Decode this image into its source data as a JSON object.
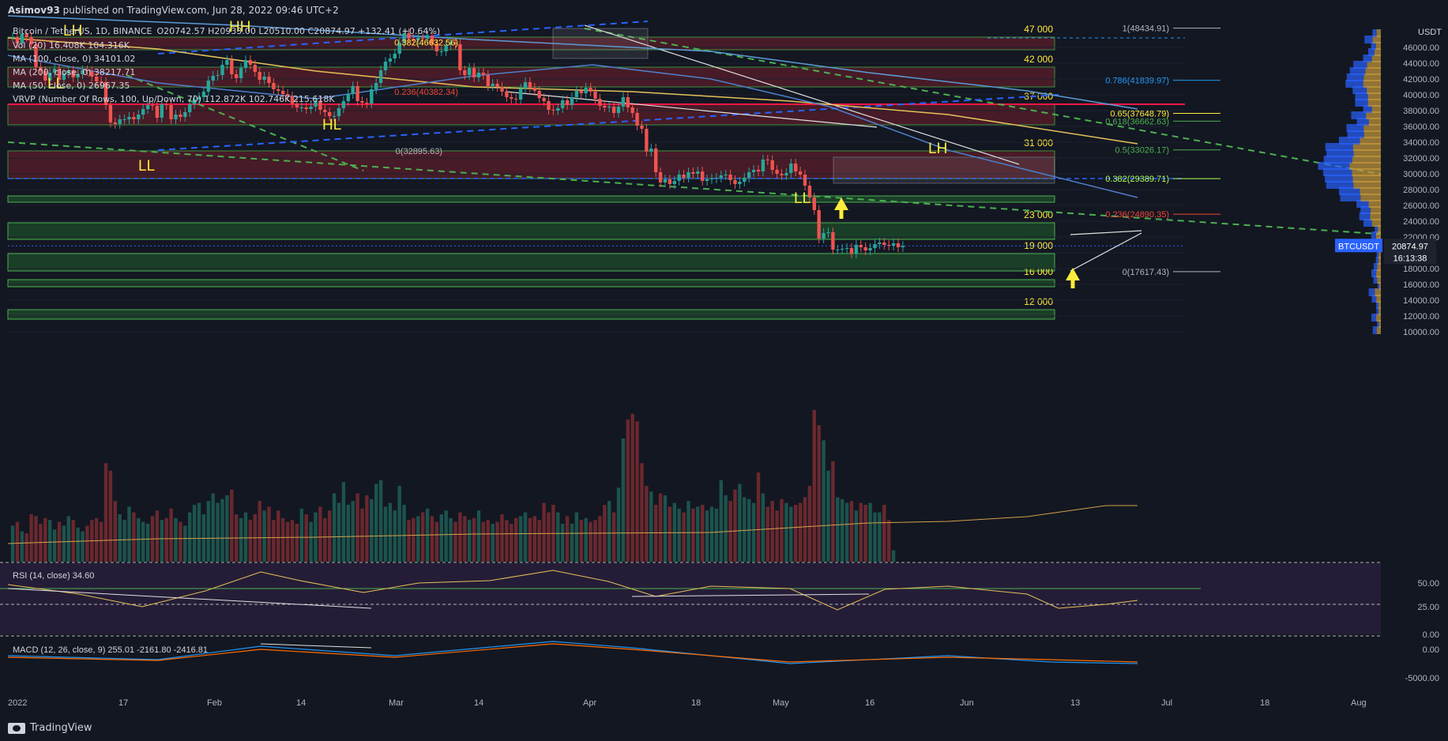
{
  "header": {
    "author": "Asimov93",
    "published": "published on TradingView.com, Jun 28, 2022 09:46 UTC+2"
  },
  "legend": {
    "symbol": "Bitcoin / TetherUS, 1D, BINANCE",
    "ohlc": "O20742.57 H20933.00 L20510.00 C20874.97 +132.41 (+0.64%)",
    "vol": "Vol (20) 16.408K 104.316K",
    "ma100": "MA (100, close, 0) 34101.02",
    "ma200": "MA (200, close, 0) 38217.71",
    "ma50": "MA (50, close, 0) 26967.35",
    "vrvp": "VRVP (Number Of Rows, 100, Up/Down, 70) 112.872K 102.746K 215.618K"
  },
  "price_axis": {
    "unit": "USDT",
    "ticks": [
      "46000.00",
      "44000.00",
      "42000.00",
      "40000.00",
      "38000.00",
      "36000.00",
      "34000.00",
      "32000.00",
      "30000.00",
      "28000.00",
      "26000.00",
      "24000.00",
      "22000.00",
      "18000.00",
      "16000.00",
      "14000.00",
      "12000.00",
      "10000.00"
    ],
    "last_label": "BTCUSDT",
    "last_price": "20874.97",
    "countdown": "16:13:38",
    "rsi_ticks": [
      "50.00",
      "25.00",
      "0.00"
    ],
    "macd_ticks": [
      "0.00",
      "-5000.00"
    ]
  },
  "time_axis": [
    "2022",
    "17",
    "Feb",
    "14",
    "Mar",
    "14",
    "Apr",
    "18",
    "May",
    "16",
    "Jun",
    "13",
    "Jul",
    "18",
    "Aug"
  ],
  "chart_data": {
    "type": "candlestick",
    "title": "Bitcoin / TetherUS, 1D, BINANCE",
    "ylim": [
      8000,
      50000
    ],
    "zones": [
      {
        "label": "47 000",
        "low": 45700,
        "high": 47300,
        "color": "#5a1e2a"
      },
      {
        "label": "42 000",
        "low": 41000,
        "high": 43500,
        "color": "#5a1e2a"
      },
      {
        "label": "37 000",
        "low": 36200,
        "high": 38800,
        "color": "#5a1e2a"
      },
      {
        "label": "31 000",
        "low": 29400,
        "high": 32900,
        "color": "#5a1e2a"
      },
      {
        "label": "",
        "low": 26400,
        "high": 27200,
        "color": "#1e4d2b"
      },
      {
        "label": "23 000",
        "low": 21700,
        "high": 23800,
        "color": "#1e4d2b"
      },
      {
        "label": "19 000",
        "low": 17700,
        "high": 19900,
        "color": "#1e4d2b"
      },
      {
        "label": "16 000",
        "low": 15700,
        "high": 16600,
        "color": "#1e4d2b"
      },
      {
        "label": "12 000",
        "low": 11600,
        "high": 12800,
        "color": "#1e4d2b"
      }
    ],
    "fib_labels": [
      {
        "text": "1(48434.91)",
        "price": 48434.91,
        "color": "#b2b5be"
      },
      {
        "text": "0.786(41839.97)",
        "price": 41839.97,
        "color": "#2196f3"
      },
      {
        "text": "0.65(37648.79)",
        "price": 37648.79,
        "color": "#ffeb3b"
      },
      {
        "text": "0.618(36662.63)",
        "price": 36662.63,
        "color": "#4caf50"
      },
      {
        "text": "0.5(33026.17)",
        "price": 33026.17,
        "color": "#4caf50"
      },
      {
        "text": "0.382(29389.71)",
        "price": 29389.71,
        "color": "#b2ff59"
      },
      {
        "text": "0.236(24890.35)",
        "price": 24890.35,
        "color": "#f44336"
      },
      {
        "text": "0(17617.43)",
        "price": 17617.43,
        "color": "#b2b5be"
      },
      {
        "text": "0.382(46632.56)",
        "price": 46632.56,
        "color": "#ffeb3b"
      },
      {
        "text": "0.236(40382.34)",
        "price": 40382.34,
        "color": "#f44336"
      },
      {
        "text": "0(32895.63)",
        "price": 32895.63,
        "color": "#b2b5be"
      }
    ],
    "annotations": [
      "HH",
      "LH",
      "LL",
      "LL",
      "HL",
      "LH",
      "LL"
    ],
    "closes": [
      47300,
      46500,
      47700,
      47300,
      46400,
      43500,
      43000,
      41800,
      42800,
      43300,
      41900,
      42700,
      43100,
      42200,
      42600,
      43100,
      43000,
      42300,
      41700,
      41600,
      38700,
      36500,
      36300,
      36900,
      36900,
      37200,
      36900,
      37500,
      38200,
      38700,
      38600,
      37100,
      38800,
      38700,
      36900,
      37500,
      37200,
      37800,
      38800,
      39400,
      39700,
      40400,
      41800,
      42400,
      42500,
      43800,
      44400,
      42600,
      42100,
      43400,
      44400,
      43800,
      42900,
      41900,
      42300,
      41500,
      40700,
      40500,
      40100,
      39800,
      38900,
      38400,
      38400,
      38200,
      38500,
      39200,
      38100,
      37800,
      37300,
      37300,
      38300,
      39200,
      40100,
      41100,
      39200,
      39000,
      38900,
      40700,
      41500,
      43100,
      44200,
      44600,
      45200,
      46600,
      47800,
      47100,
      46900,
      47200,
      47100,
      47500,
      46400,
      45500,
      45500,
      46300,
      46600,
      46400,
      43100,
      42500,
      43400,
      42200,
      42800,
      42500,
      41100,
      41400,
      41000,
      40400,
      39700,
      39500,
      39400,
      40800,
      41600,
      40900,
      40500,
      39600,
      39200,
      38100,
      38000,
      38300,
      39300,
      38700,
      39700,
      40500,
      40200,
      40900,
      40400,
      39500,
      38600,
      38400,
      38500,
      37700,
      38500,
      39700,
      38400,
      37700,
      36100,
      35700,
      32800,
      33200,
      30200,
      28900,
      29300,
      28700,
      29100,
      29900,
      29500,
      30200,
      30000,
      30300,
      29100,
      29300,
      29400,
      29500,
      29800,
      29900,
      29200,
      28700,
      29000,
      29500,
      30200,
      30500,
      30300,
      31800,
      31700,
      30500,
      30000,
      29800,
      30100,
      31300,
      30300,
      29900,
      28500,
      27000,
      25400,
      21800,
      22500,
      22600,
      20400,
      20400,
      20500,
      20600,
      19900,
      21000,
      20700,
      20300,
      20600,
      21100,
      21300,
      21000,
      20900,
      21200,
      20700,
      20875
    ],
    "volumes": [
      1.9,
      2.1,
      1.6,
      1.5,
      2.5,
      2.4,
      2.0,
      2.3,
      2.2,
      1.7,
      2.1,
      1.9,
      2.4,
      2.2,
      1.8,
      1.6,
      1.9,
      2.2,
      2.3,
      2.1,
      5.2,
      4.8,
      3.2,
      2.5,
      2.2,
      2.9,
      2.6,
      2.3,
      2.1,
      2.0,
      2.4,
      2.7,
      2.2,
      2.3,
      2.8,
      2.3,
      2.1,
      1.9,
      2.6,
      3.0,
      3.1,
      2.5,
      3.2,
      3.6,
      3.1,
      3.3,
      3.5,
      3.8,
      2.5,
      2.3,
      2.6,
      2.2,
      2.5,
      3.2,
      2.7,
      2.9,
      2.2,
      2.7,
      2.3,
      2.1,
      2.2,
      2.0,
      2.8,
      2.5,
      2.1,
      2.6,
      2.9,
      2.3,
      2.7,
      3.6,
      3.1,
      4.2,
      3.0,
      3.2,
      3.6,
      2.8,
      3.5,
      3.3,
      4.1,
      4.3,
      2.9,
      3.1,
      2.7,
      4.0,
      3.0,
      2.2,
      2.3,
      2.4,
      2.6,
      2.8,
      2.4,
      2.1,
      2.5,
      2.7,
      2.3,
      2.1,
      2.6,
      2.4,
      2.2,
      2.3,
      2.7,
      2.1,
      2.2,
      2.0,
      2.1,
      2.5,
      2.2,
      2.0,
      2.3,
      2.4,
      2.6,
      2.3,
      2.4,
      2.2,
      3.1,
      2.6,
      3.0,
      2.6,
      2.0,
      2.4,
      2.0,
      2.6,
      2.2,
      2.3,
      2.1,
      2.2,
      2.4,
      3.0,
      3.2,
      2.6,
      3.9,
      6.5,
      7.5,
      7.8,
      7.4,
      5.2,
      4.0,
      3.7,
      3.0,
      3.6,
      3.5,
      2.9,
      3.1,
      2.8,
      2.6,
      3.2,
      2.8,
      2.9,
      3.0,
      2.7,
      2.9,
      2.8,
      4.3,
      3.5,
      3.2,
      3.8,
      4.1,
      3.4,
      3.3,
      3.1,
      4.7,
      3.6,
      2.9,
      3.2,
      2.7,
      3.3,
      3.1,
      2.9,
      3.0,
      3.1,
      3.4,
      4.0,
      8.0,
      7.2,
      6.4,
      4.8,
      5.3,
      3.4,
      3.3,
      3.1,
      3.2,
      2.7,
      3.1,
      3.0,
      3.1,
      2.6,
      2.6,
      3.0,
      2.2,
      0.6
    ]
  }
}
